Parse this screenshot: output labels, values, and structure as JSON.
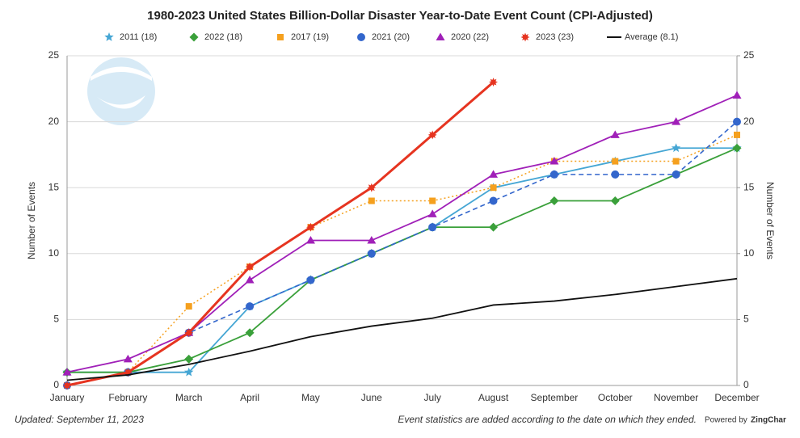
{
  "chart_data": {
    "type": "line",
    "title": "1980-2023 United States Billion-Dollar Disaster Year-to-Date Event Count (CPI-Adjusted)",
    "ylabel": "Number of Events",
    "y2label": "Number of Events",
    "categories": [
      "January",
      "February",
      "March",
      "April",
      "May",
      "June",
      "July",
      "August",
      "September",
      "October",
      "November",
      "December"
    ],
    "ylim": [
      0,
      25
    ],
    "yticks": [
      0,
      5,
      10,
      15,
      20,
      25
    ],
    "y2lim": [
      0,
      25
    ],
    "y2ticks": [
      0,
      5,
      10,
      15,
      20,
      25
    ],
    "grid": true,
    "series": [
      {
        "name": "2011 (18)",
        "color": "#45a6d4",
        "marker": "star",
        "line_style": "solid",
        "values": [
          1,
          1,
          1,
          6,
          8,
          10,
          12,
          15,
          16,
          17,
          18,
          18
        ]
      },
      {
        "name": "2022 (18)",
        "color": "#3aa03a",
        "marker": "diamond",
        "line_style": "solid",
        "values": [
          1,
          1,
          2,
          4,
          8,
          10,
          12,
          12,
          14,
          14,
          16,
          18
        ]
      },
      {
        "name": "2017 (19)",
        "color": "#f5a01e",
        "marker": "square",
        "line_style": "dotted",
        "values": [
          0,
          1,
          6,
          9,
          12,
          14,
          14,
          15,
          17,
          17,
          17,
          19
        ]
      },
      {
        "name": "2021 (20)",
        "color": "#3366cc",
        "marker": "circle",
        "line_style": "dashed",
        "values": [
          0,
          1,
          4,
          6,
          8,
          10,
          12,
          14,
          16,
          16,
          16,
          20
        ]
      },
      {
        "name": "2020 (22)",
        "color": "#a020b8",
        "marker": "triangle",
        "line_style": "solid",
        "values": [
          1,
          2,
          4,
          8,
          11,
          11,
          13,
          16,
          17,
          19,
          20,
          22
        ]
      },
      {
        "name": "2023 (23)",
        "color": "#e63420",
        "marker": "burst",
        "line_style": "thick",
        "values": [
          0,
          1,
          4,
          9,
          12,
          15,
          19,
          23,
          null,
          null,
          null,
          null
        ]
      },
      {
        "name": "Average (8.1)",
        "color": "#111111",
        "marker": "none",
        "line_style": "solid",
        "values": [
          0.4,
          0.8,
          1.6,
          2.6,
          3.7,
          4.5,
          5.1,
          6.1,
          6.4,
          6.9,
          7.5,
          8.1
        ]
      }
    ],
    "footer_left": "Updated: September 11, 2023",
    "footer_right": "Event statistics are added according to the date on which they ended.",
    "credit_prefix": "Powered by",
    "credit_brand": "ZingChar"
  }
}
